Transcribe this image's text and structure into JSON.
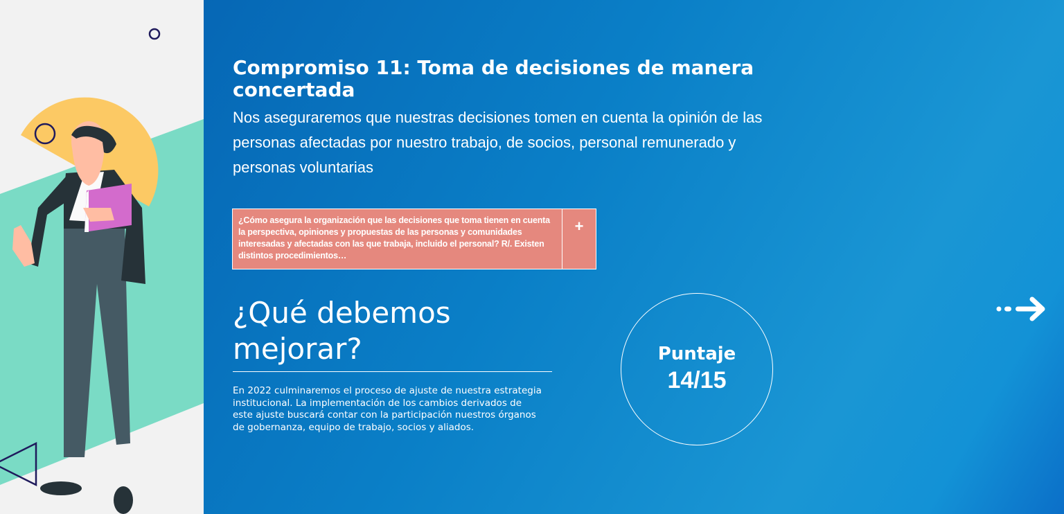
{
  "commitment": {
    "title": "Compromiso 11: Toma de decisiones de manera concertada",
    "subtitle": "Nos aseguraremos que nuestras decisiones tomen en cuenta la opinión de las personas afectadas por nuestro trabajo, de socios, personal remunerado y personas voluntarias"
  },
  "question": {
    "text": "¿Cómo asegura la organización que las decisiones que toma tienen en cuenta la perspectiva, opiniones y propuestas de las personas y comunidades interesadas y afectadas con las que trabaja, incluido el personal? R/. Existen distintos procedimientos…",
    "expand_label": "+",
    "color": "#e5887e"
  },
  "improve": {
    "heading": "¿Qué debemos mejorar?",
    "body": "En 2022 culminaremos el proceso de ajuste de nuestra estrategia institucional. La implementación de los cambios derivados de este ajuste buscará contar con la participación nuestros órganos de gobernanza, equipo de trabajo, socios y aliados."
  },
  "score": {
    "label": "Puntaje",
    "value": "14/15"
  },
  "navigation": {
    "next_icon": "dotted-arrow-right-icon"
  },
  "colors": {
    "main_bg": "#0a7fc7",
    "left_bg": "#f2f2f2",
    "teal": "#7adbc5",
    "yellow": "#fcc964",
    "navy": "#1f1a5c"
  }
}
